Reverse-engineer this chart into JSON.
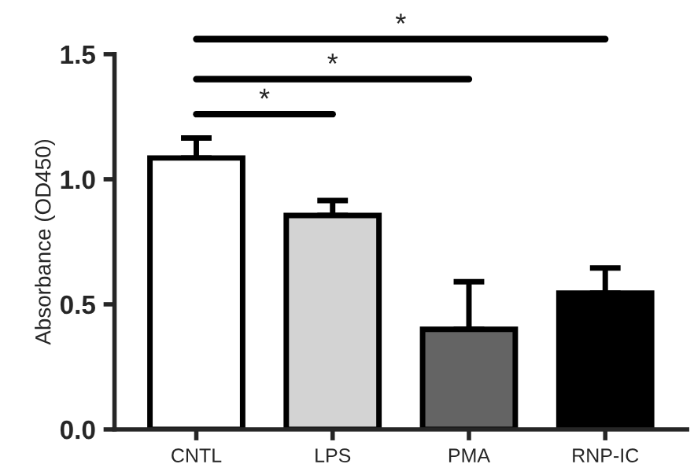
{
  "chart_data": {
    "type": "bar",
    "ylabel": "Absorbance (OD450)",
    "categories": [
      "CNTL",
      "LPS",
      "PMA",
      "RNP-IC"
    ],
    "values": [
      1.085,
      0.855,
      0.4,
      0.545
    ],
    "errors": [
      0.08,
      0.06,
      0.19,
      0.1
    ],
    "colors": [
      "#ffffff",
      "#d3d3d3",
      "#646464",
      "#000000"
    ],
    "ylim": [
      0,
      1.5
    ],
    "yticks": [
      {
        "value": 0,
        "label": "0.0"
      },
      {
        "value": 0.5,
        "label": "0.5"
      },
      {
        "value": 1.0,
        "label": "1.0"
      },
      {
        "value": 1.5,
        "label": "1.5"
      }
    ],
    "grid": false,
    "annotations": [
      "*",
      "*",
      "*"
    ]
  }
}
